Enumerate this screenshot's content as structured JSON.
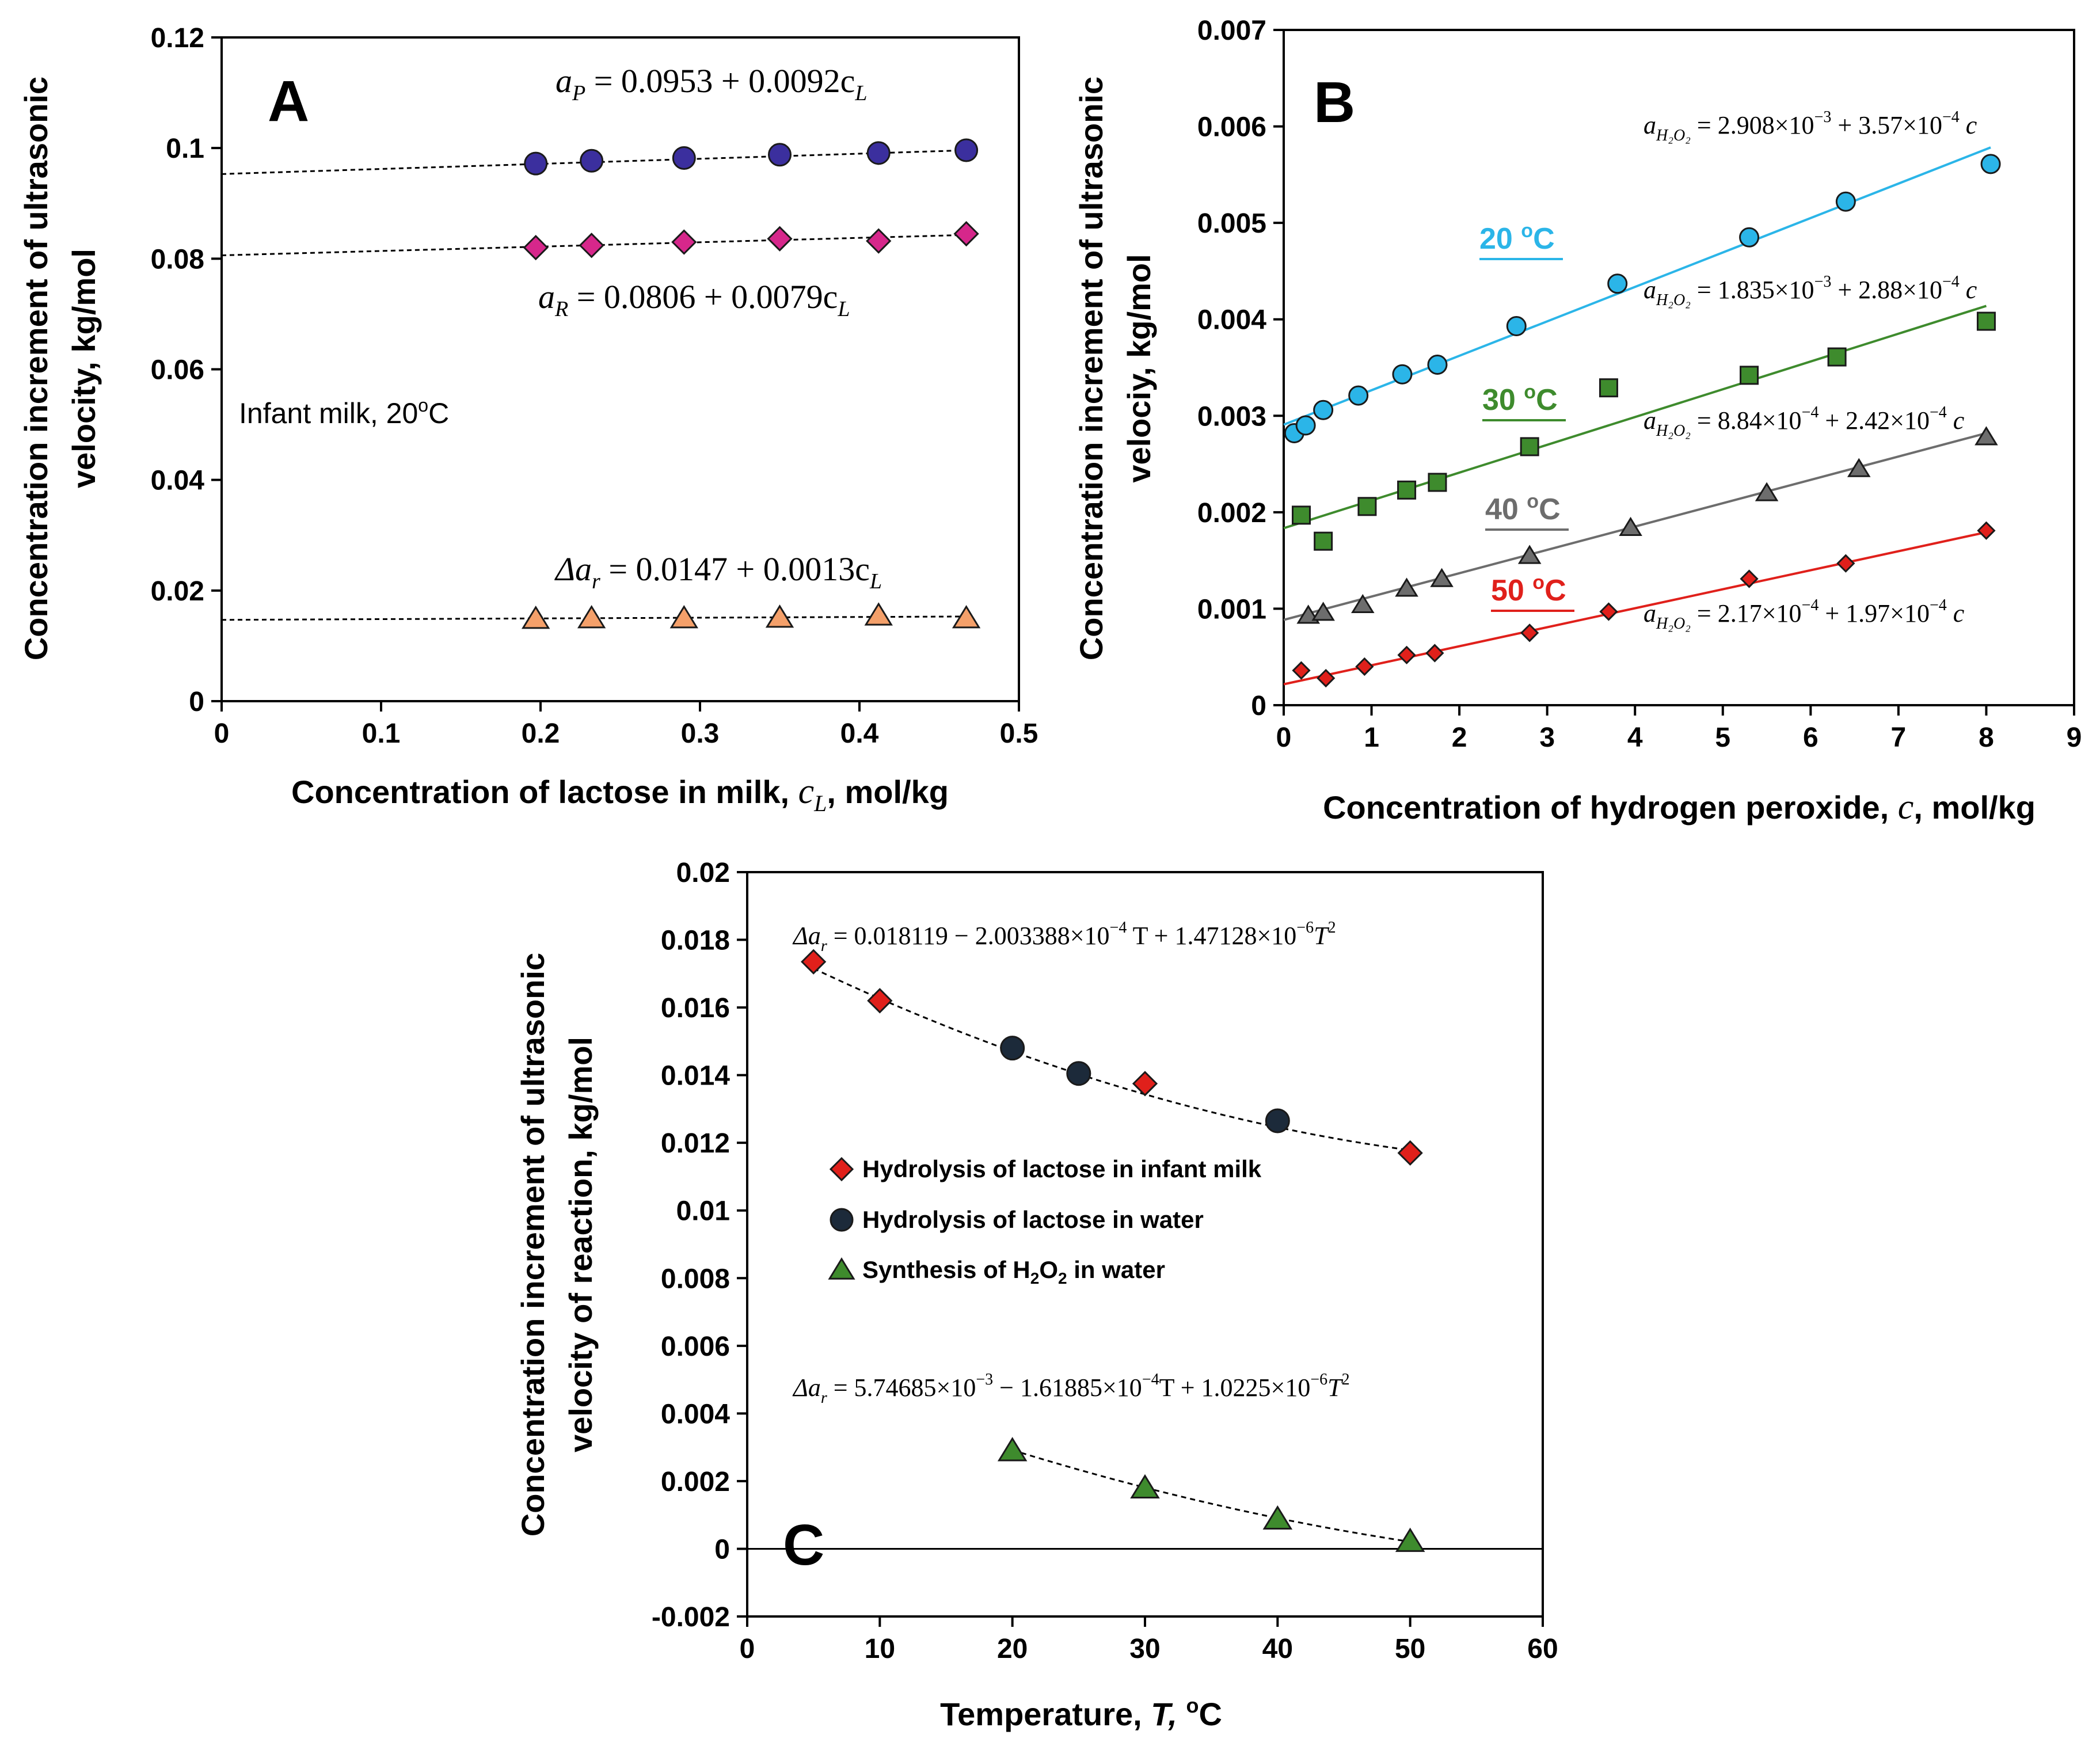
{
  "chart_data": [
    {
      "id": "A",
      "type": "scatter",
      "panel_label": "A",
      "xlabel": "Concentration of lactose in milk,",
      "xlabel_var": "c",
      "xlabel_sub": "L",
      "xlabel_unit": "mol/kg",
      "ylabel_line1": "Concentration increment of ultrasonic",
      "ylabel_line2": "velocity, kg/mol",
      "xlim": [
        0,
        0.5
      ],
      "ylim": [
        0,
        0.12
      ],
      "xticks": [
        0,
        0.1,
        0.2,
        0.3,
        0.4,
        0.5
      ],
      "yticks": [
        0,
        0.02,
        0.04,
        0.06,
        0.08,
        0.1,
        0.12
      ],
      "xtick_labels": [
        "0",
        "0.1",
        "0.2",
        "0.3",
        "0.4",
        "0.5"
      ],
      "ytick_labels": [
        "0",
        "0.02",
        "0.04",
        "0.06",
        "0.08",
        "0.1",
        "0.12"
      ],
      "annotation": "Infant milk, 20",
      "annotation_deg": "o",
      "annotation_unit": "C",
      "series": [
        {
          "name": "aP",
          "marker": "circle",
          "color": "#3b2f9e",
          "x": [
            0.197,
            0.232,
            0.29,
            0.35,
            0.412,
            0.467
          ],
          "y": [
            0.0972,
            0.0977,
            0.0982,
            0.0988,
            0.0991,
            0.0996
          ],
          "fit": [
            0.0953,
            0.0092
          ],
          "equation": {
            "lhs": "a",
            "sub": "P",
            "rhs": " = 0.0953 + 0.0092c",
            "rsub": "L"
          }
        },
        {
          "name": "aR",
          "marker": "diamond",
          "color": "#d6278b",
          "x": [
            0.197,
            0.232,
            0.29,
            0.35,
            0.412,
            0.467
          ],
          "y": [
            0.082,
            0.0824,
            0.083,
            0.0836,
            0.0832,
            0.0845
          ],
          "fit": [
            0.0806,
            0.0079
          ],
          "equation": {
            "lhs": "a",
            "sub": "R",
            "rhs": " = 0.0806 + 0.0079c",
            "rsub": "L"
          }
        },
        {
          "name": "dar",
          "marker": "triangle",
          "color": "#f4a06a",
          "x": [
            0.197,
            0.232,
            0.29,
            0.35,
            0.412,
            0.467
          ],
          "y": [
            0.0149,
            0.015,
            0.015,
            0.0151,
            0.0155,
            0.015
          ],
          "fit": [
            0.0147,
            0.0013
          ],
          "equation": {
            "lhs": "Δa",
            "sub": "r",
            "rhs": " = 0.0147 + 0.0013c",
            "rsub": "L"
          }
        }
      ]
    },
    {
      "id": "B",
      "type": "scatter",
      "panel_label": "B",
      "xlabel": "Concentration of hydrogen peroxide,",
      "xlabel_var": "c",
      "xlabel_unit": ", mol/kg",
      "ylabel_line1": "Concentration increment of ultrasonic",
      "ylabel_line2": "velociy, kg/mol",
      "xlim": [
        0,
        9
      ],
      "ylim": [
        0,
        0.007
      ],
      "xticks": [
        0,
        1,
        2,
        3,
        4,
        5,
        6,
        7,
        8,
        9
      ],
      "yticks": [
        0,
        0.001,
        0.002,
        0.003,
        0.004,
        0.005,
        0.006,
        0.007
      ],
      "xtick_labels": [
        "0",
        "1",
        "2",
        "3",
        "4",
        "5",
        "6",
        "7",
        "8",
        "9"
      ],
      "ytick_labels": [
        "0",
        "0.001",
        "0.002",
        "0.003",
        "0.004",
        "0.005",
        "0.006",
        "0.007"
      ],
      "series": [
        {
          "name": "20 °C",
          "temp": "20",
          "deg": "o",
          "unit": "C",
          "marker": "circle",
          "color": "#2bb5e8",
          "x": [
            0.12,
            0.25,
            0.45,
            0.85,
            1.35,
            1.75,
            2.65,
            3.8,
            5.3,
            6.4,
            8.05
          ],
          "y": [
            0.00282,
            0.0029,
            0.00306,
            0.00321,
            0.00343,
            0.00353,
            0.00393,
            0.00437,
            0.00485,
            0.00522,
            0.00561
          ],
          "fit": [
            0.002908,
            0.000357
          ],
          "equation": {
            "lhs": "a",
            "sub": "H₂O₂",
            "rhs": " = 2.908×10",
            "e1": "−3",
            "mid": " + 3.57×10",
            "e2": "−4",
            "end": " c"
          }
        },
        {
          "name": "30 °C",
          "temp": "30",
          "deg": "o",
          "unit": "C",
          "marker": "square",
          "color": "#3e8b2d",
          "x": [
            0.2,
            0.45,
            0.95,
            1.4,
            1.75,
            2.8,
            3.7,
            5.3,
            6.3,
            8.0
          ],
          "y": [
            0.00197,
            0.0017,
            0.00206,
            0.00223,
            0.00231,
            0.00268,
            0.00329,
            0.00342,
            0.00361,
            0.00398
          ],
          "fit": [
            0.001835,
            0.000288
          ],
          "equation": {
            "lhs": "a",
            "sub": "H₂O₂",
            "rhs": " = 1.835×10",
            "e1": "−3",
            "mid": " + 2.88×10",
            "e2": "−4",
            "end": " c"
          }
        },
        {
          "name": "40 °C",
          "temp": "40",
          "deg": "o",
          "unit": "C",
          "marker": "triangle",
          "color": "#6d6d6d",
          "x": [
            0.28,
            0.45,
            0.9,
            1.4,
            1.8,
            2.8,
            3.95,
            5.5,
            6.55,
            8.0
          ],
          "y": [
            0.00093,
            0.00096,
            0.00104,
            0.00121,
            0.00131,
            0.00155,
            0.00184,
            0.0022,
            0.00245,
            0.00278
          ],
          "fit": [
            0.000884,
            0.000242
          ],
          "equation": {
            "lhs": "a",
            "sub": "H₂O₂",
            "rhs": " = 8.84×10",
            "e1": "−4",
            "mid": " + 2.42×10",
            "e2": "−4",
            "end": " c"
          }
        },
        {
          "name": "50 °C",
          "temp": "50",
          "deg": "o",
          "unit": "C",
          "marker": "diamond",
          "color": "#e0201b",
          "x": [
            0.2,
            0.48,
            0.92,
            1.4,
            1.72,
            2.8,
            3.7,
            5.3,
            6.4,
            8.0
          ],
          "y": [
            0.00036,
            0.00028,
            0.0004,
            0.00052,
            0.00054,
            0.00075,
            0.00097,
            0.00131,
            0.00147,
            0.00181
          ],
          "fit": [
            0.000217,
            0.000197
          ],
          "equation": {
            "lhs": "a",
            "sub": "H₂O₂",
            "rhs": " = 2.17×10",
            "e1": "−4",
            "mid": " + 1.97×10",
            "e2": "−4",
            "end": " c"
          }
        }
      ]
    },
    {
      "id": "C",
      "type": "scatter",
      "panel_label": "C",
      "xlabel": "Temperature,",
      "xlabel_var": "T,",
      "xlabel_deg": "o",
      "xlabel_unit": "C",
      "ylabel_line1": "Concentration increment of ultrasonic",
      "ylabel_line2": "velocity of reaction, kg/mol",
      "xlim": [
        0,
        60
      ],
      "ylim": [
        -0.002,
        0.02
      ],
      "xticks": [
        0,
        10,
        20,
        30,
        40,
        50,
        60
      ],
      "yticks": [
        -0.002,
        0,
        0.002,
        0.004,
        0.006,
        0.008,
        0.01,
        0.012,
        0.014,
        0.016,
        0.018,
        0.02
      ],
      "xtick_labels": [
        "0",
        "10",
        "20",
        "30",
        "40",
        "50",
        "60"
      ],
      "ytick_labels": [
        "-0.002",
        "0",
        "0.002",
        "0.004",
        "0.006",
        "0.008",
        "0.01",
        "0.012",
        "0.014",
        "0.016",
        "0.018",
        "0.02"
      ],
      "legend": [
        {
          "label": "Hydrolysis of lactose in infant milk",
          "marker": "diamond",
          "color": "#e0201b"
        },
        {
          "label": "Hydrolysis of lactose in water",
          "marker": "circle",
          "color": "#1c2a3a"
        },
        {
          "label_pre": "Synthesis of H",
          "label_sub1": "2",
          "label_mid": "O",
          "label_sub2": "2",
          "label_post": " in water",
          "marker": "triangle",
          "color": "#3e8b2d"
        }
      ],
      "series": [
        {
          "name": "Hydrolysis of lactose in infant milk",
          "marker": "diamond",
          "color": "#e0201b",
          "x": [
            5,
            10,
            30,
            50
          ],
          "y": [
            0.01735,
            0.0162,
            0.01375,
            0.0117
          ]
        },
        {
          "name": "Hydrolysis of lactose in water",
          "marker": "circle",
          "color": "#1c2a3a",
          "x": [
            20,
            25,
            40
          ],
          "y": [
            0.0148,
            0.01405,
            0.01265
          ]
        },
        {
          "name": "Synthesis of H2O2 in water",
          "marker": "triangle",
          "color": "#3e8b2d",
          "x": [
            20,
            30,
            40,
            50
          ],
          "y": [
            0.0029,
            0.0018,
            0.00088,
            0.00022
          ]
        }
      ],
      "fits": [
        {
          "coef": [
            0.018119,
            -0.0002003388,
            1.47128e-06
          ],
          "range": [
            5,
            50
          ],
          "equation": {
            "lhs": "Δa",
            "sub": "r",
            "rhs": " = 0.018119 − 2.003388×10",
            "e1": "−4",
            "mid": "T + 1.47128×10",
            "e2": "−6",
            "end": "T",
            "e3": "2"
          }
        },
        {
          "coef": [
            0.00574685,
            -0.000161885,
            1.0225e-06
          ],
          "range": [
            20,
            50
          ],
          "equation": {
            "lhs": "Δa",
            "sub": "r",
            "rhs": " = 5.74685×10",
            "e1": "−3",
            "mid": " − 1.61885×10",
            "e2": "−4",
            "mid2": "T + 1.0225×10",
            "e3": "−6",
            "end": "T",
            "e4": "2"
          }
        }
      ]
    }
  ]
}
